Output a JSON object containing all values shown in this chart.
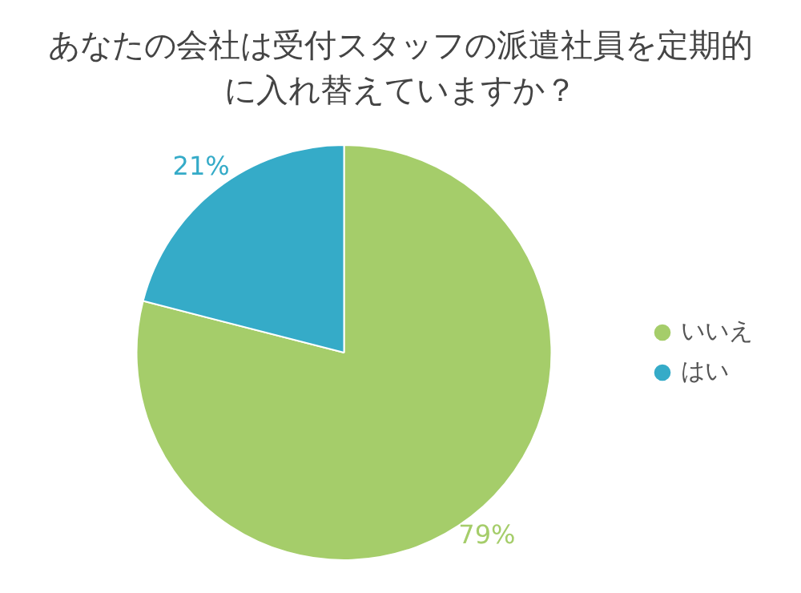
{
  "chart_data": {
    "type": "pie",
    "title": "あなたの会社は受付スタッフの派遣社員を定期的に入れ替えていますか？",
    "categories": [
      "いいえ",
      "はい"
    ],
    "values": [
      79,
      21
    ],
    "value_labels": [
      "79%",
      "21%"
    ],
    "colors": [
      "#a5cd6a",
      "#35abc8"
    ],
    "legend": "right"
  }
}
